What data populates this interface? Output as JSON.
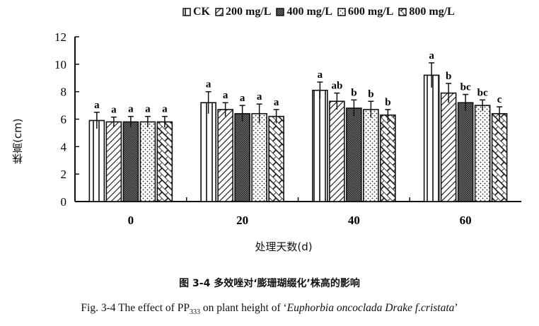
{
  "chart_data": {
    "type": "bar",
    "title": "",
    "xlabel": "处理天数(d)",
    "ylabel": "株高(cm)",
    "ylim": [
      0,
      12
    ],
    "yticks": [
      0,
      2,
      4,
      6,
      8,
      10,
      12
    ],
    "categories": [
      "0",
      "20",
      "40",
      "60"
    ],
    "legend_position": "top",
    "grid": false,
    "series": [
      {
        "name": "CK",
        "pattern": "vertical-lines",
        "values": [
          5.9,
          7.2,
          8.1,
          9.2
        ],
        "errors": [
          0.6,
          0.8,
          0.6,
          0.9
        ],
        "letters": [
          "a",
          "a",
          "a",
          "a"
        ]
      },
      {
        "name": "200 mg/L",
        "pattern": "diagonal-lines",
        "values": [
          5.8,
          6.7,
          7.3,
          7.9
        ],
        "errors": [
          0.35,
          0.5,
          0.6,
          0.7
        ],
        "letters": [
          "a",
          "a",
          "ab",
          "b"
        ]
      },
      {
        "name": "400 mg/L",
        "pattern": "dense-dots",
        "values": [
          5.8,
          6.4,
          6.8,
          7.2
        ],
        "errors": [
          0.4,
          0.6,
          0.6,
          0.6
        ],
        "letters": [
          "a",
          "a",
          "b",
          "bc"
        ]
      },
      {
        "name": "600 mg/L",
        "pattern": "sparse-dots",
        "values": [
          5.8,
          6.4,
          6.7,
          7.0
        ],
        "errors": [
          0.4,
          0.7,
          0.6,
          0.4
        ],
        "letters": [
          "a",
          "a",
          "b",
          "bc"
        ]
      },
      {
        "name": "800 mg/L",
        "pattern": "brick",
        "values": [
          5.8,
          6.2,
          6.3,
          6.4
        ],
        "errors": [
          0.4,
          0.5,
          0.4,
          0.5
        ],
        "letters": [
          "a",
          "a",
          "b",
          "c"
        ]
      }
    ]
  },
  "caption": {
    "cn": "图 3-4  多效唑对‘膨珊瑚缀化’株高的影响",
    "en_prefix": "Fig. 3-4 The effect of PP",
    "en_sub": "333",
    "en_mid": " on plant height of ‘",
    "en_italic": "Euphorbia oncoclada Drake f.cristata",
    "en_suffix": "’"
  }
}
